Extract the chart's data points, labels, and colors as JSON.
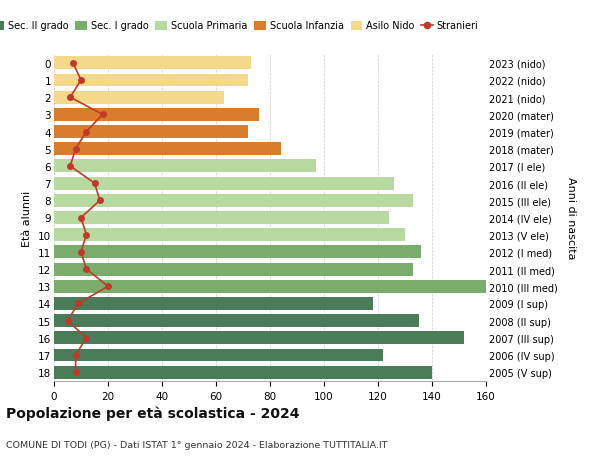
{
  "ages": [
    18,
    17,
    16,
    15,
    14,
    13,
    12,
    11,
    10,
    9,
    8,
    7,
    6,
    5,
    4,
    3,
    2,
    1,
    0
  ],
  "years": [
    "2005 (V sup)",
    "2006 (IV sup)",
    "2007 (III sup)",
    "2008 (II sup)",
    "2009 (I sup)",
    "2010 (III med)",
    "2011 (II med)",
    "2012 (I med)",
    "2013 (V ele)",
    "2014 (IV ele)",
    "2015 (III ele)",
    "2016 (II ele)",
    "2017 (I ele)",
    "2018 (mater)",
    "2019 (mater)",
    "2020 (mater)",
    "2021 (nido)",
    "2022 (nido)",
    "2023 (nido)"
  ],
  "bar_values": [
    140,
    122,
    152,
    135,
    118,
    160,
    133,
    136,
    130,
    124,
    133,
    126,
    97,
    84,
    72,
    76,
    63,
    72,
    73
  ],
  "bar_colors": [
    "#4a7c59",
    "#4a7c59",
    "#4a7c59",
    "#4a7c59",
    "#4a7c59",
    "#7aad6b",
    "#7aad6b",
    "#7aad6b",
    "#b8d9a0",
    "#b8d9a0",
    "#b8d9a0",
    "#b8d9a0",
    "#b8d9a0",
    "#d97c2b",
    "#d97c2b",
    "#d97c2b",
    "#f5d98b",
    "#f5d98b",
    "#f5d98b"
  ],
  "stranieri_values": [
    8,
    8,
    12,
    5,
    9,
    20,
    12,
    10,
    12,
    10,
    17,
    15,
    6,
    8,
    12,
    18,
    6,
    10,
    7
  ],
  "legend_labels": [
    "Sec. II grado",
    "Sec. I grado",
    "Scuola Primaria",
    "Scuola Infanzia",
    "Asilo Nido",
    "Stranieri"
  ],
  "legend_colors": [
    "#4a7c59",
    "#7aad6b",
    "#b8d9a0",
    "#d97c2b",
    "#f5d98b",
    "#c0392b"
  ],
  "ylabel_left": "Età alunni",
  "ylabel_right": "Anni di nascita",
  "title": "Popolazione per età scolastica - 2024",
  "subtitle": "COMUNE DI TODI (PG) - Dati ISTAT 1° gennaio 2024 - Elaborazione TUTTITALIA.IT",
  "xlim": [
    0,
    160
  ],
  "xticks": [
    0,
    20,
    40,
    60,
    80,
    100,
    120,
    140,
    160
  ],
  "background_color": "#ffffff",
  "grid_color": "#cccccc"
}
